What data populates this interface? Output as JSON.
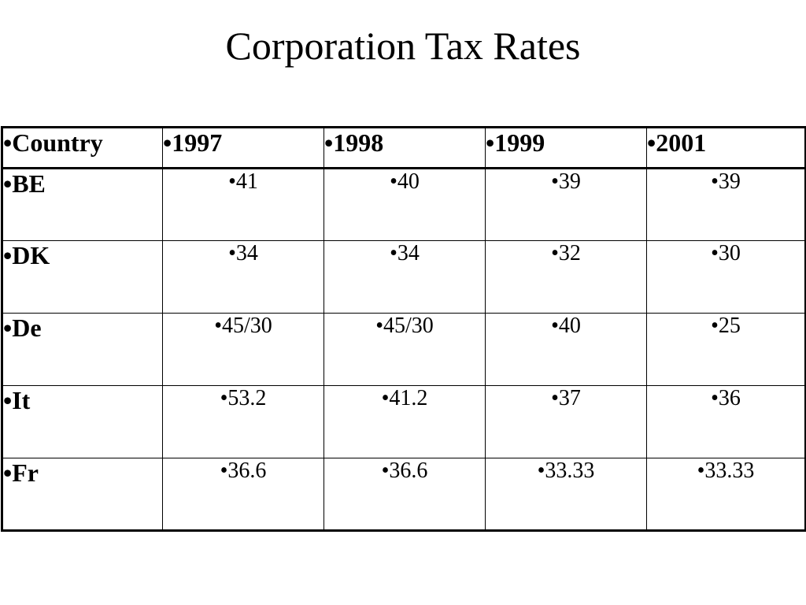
{
  "slide": {
    "title": "Corporation Tax Rates"
  },
  "table": {
    "headers": [
      "Country",
      "1997",
      "1998",
      "1999",
      "2001"
    ],
    "rows": [
      {
        "country": "BE",
        "values": [
          "41",
          "40",
          "39",
          "39"
        ]
      },
      {
        "country": "DK",
        "values": [
          "34",
          "34",
          "32",
          "30"
        ]
      },
      {
        "country": "De",
        "values": [
          "45/30",
          "45/30",
          "40",
          "25"
        ]
      },
      {
        "country": "It",
        "values": [
          "53.2",
          "41.2",
          "37",
          "36"
        ]
      },
      {
        "country": "Fr",
        "values": [
          "36.6",
          "36.6",
          "33.33",
          "33.33"
        ]
      }
    ]
  }
}
